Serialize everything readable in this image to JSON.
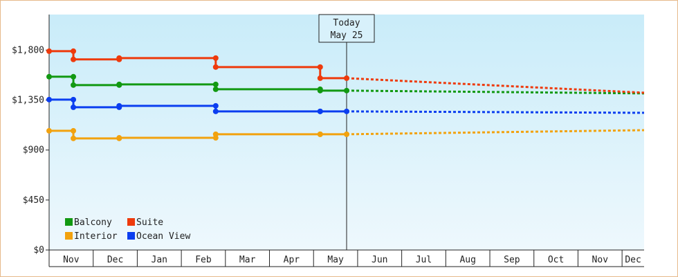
{
  "chart_data": {
    "type": "step-line",
    "annotation": {
      "title": "Today",
      "date": "May 25",
      "x": 6.75
    },
    "xlim": [
      0,
      13.5
    ],
    "xticks": [
      {
        "value": 0.5,
        "label": "Nov"
      },
      {
        "value": 1.5,
        "label": "Dec"
      },
      {
        "value": 2.5,
        "label": "Jan"
      },
      {
        "value": 3.5,
        "label": "Feb"
      },
      {
        "value": 4.5,
        "label": "Mar"
      },
      {
        "value": 5.5,
        "label": "Apr"
      },
      {
        "value": 6.5,
        "label": "May"
      },
      {
        "value": 7.5,
        "label": "Jun"
      },
      {
        "value": 8.5,
        "label": "Jul"
      },
      {
        "value": 9.5,
        "label": "Aug"
      },
      {
        "value": 10.5,
        "label": "Sep"
      },
      {
        "value": 11.5,
        "label": "Oct"
      },
      {
        "value": 12.5,
        "label": "Nov"
      },
      {
        "value": 13.25,
        "label": "Dec"
      }
    ],
    "ylim": [
      0,
      2120
    ],
    "yticks": [
      {
        "value": 0,
        "label": "$0"
      },
      {
        "value": 450,
        "label": "$450"
      },
      {
        "value": 900,
        "label": "$900"
      },
      {
        "value": 1350,
        "label": "$1,350"
      },
      {
        "value": 1800,
        "label": "$1,800"
      }
    ],
    "x": [
      0,
      0.55,
      1.59,
      3.78,
      6.15
    ],
    "x_end": 6.75,
    "forecast_x": [
      13.5
    ],
    "series": [
      {
        "name": "Balcony",
        "color": "#129912",
        "values": [
          1560,
          1485,
          1491,
          1447,
          1435
        ],
        "forecast": [
          1410
        ]
      },
      {
        "name": "Suite",
        "color": "#ee3a0c",
        "values": [
          1790,
          1716,
          1728,
          1647,
          1547
        ],
        "forecast": [
          1416
        ]
      },
      {
        "name": "Interior",
        "color": "#f2a20e",
        "values": [
          1073,
          1005,
          1010,
          1042,
          1042
        ],
        "forecast": [
          1079
        ]
      },
      {
        "name": "Ocean View",
        "color": "#0b3ef0",
        "values": [
          1354,
          1285,
          1298,
          1248,
          1248
        ],
        "forecast": [
          1235
        ]
      }
    ]
  }
}
